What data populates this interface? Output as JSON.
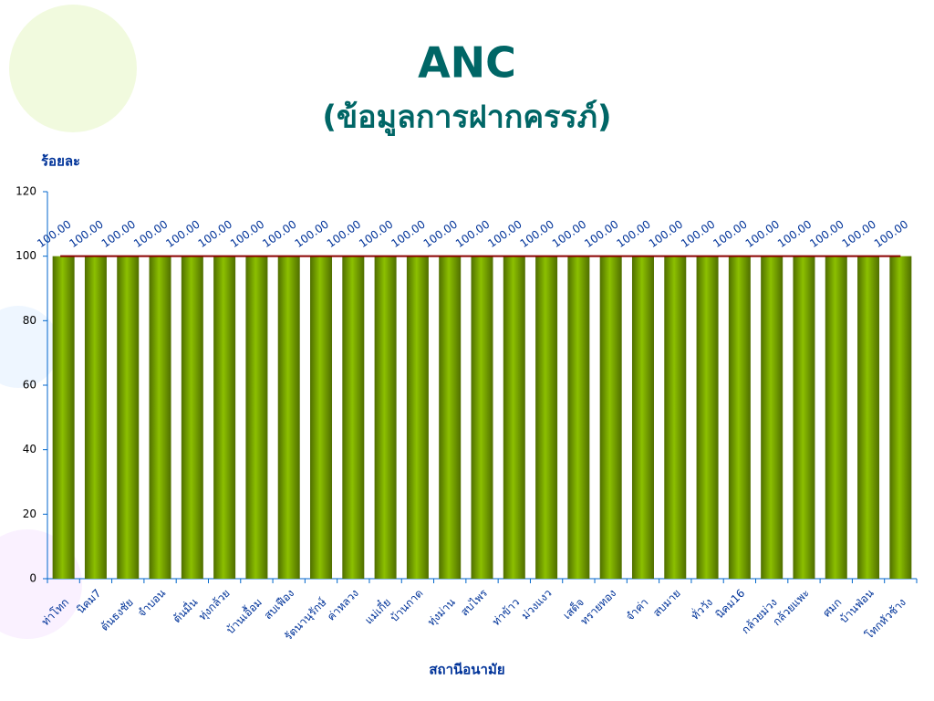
{
  "chart_data": {
    "type": "bar",
    "title": "ANC",
    "subtitle": "(ข้อมูลการฝากครรภ์)",
    "y_label": "ร้อยละ",
    "x_label": "สถานีอนามัย",
    "categories": [
      "ท่าโทก",
      "นิคม7",
      "ต้นธงชัย",
      "จำบอน",
      "ต้นมื่น",
      "ทุ่งกล้วย",
      "บ้านเอื้อม",
      "สบเฟือง",
      "รัตนานุรักษ์",
      "ค่าหลวง",
      "แม่เกี๋ย",
      "บ้านกาด",
      "ทุ่งม่าน",
      "สบไพร",
      "ท่าข้าว",
      "ม่วงแงว",
      "เสด็จ",
      "ทรายทอง",
      "จำค่า",
      "สบมาย",
      "ทั่ววัง",
      "นิคม16",
      "กล้วยม่วง",
      "กล้วยแพะ",
      "ศมก",
      "บ้านฟ่อน",
      "โทกหัวช้าง"
    ],
    "values": [
      100,
      100,
      100,
      100,
      100,
      100,
      100,
      100,
      100,
      100,
      100,
      100,
      100,
      100,
      100,
      100,
      100,
      100,
      100,
      100,
      100,
      100,
      100,
      100,
      100,
      100,
      100
    ],
    "value_labels": [
      "100.00",
      "100.00",
      "100.00",
      "100.00",
      "100.00",
      "100.00",
      "100.00",
      "100.00",
      "100.00",
      "100.00",
      "100.00",
      "100.00",
      "100.00",
      "100.00",
      "100.00",
      "100.00",
      "100.00",
      "100.00",
      "100.00",
      "100.00",
      "100.00",
      "100.00",
      "100.00",
      "100.00",
      "100.00",
      "100.00",
      "100.00"
    ],
    "color": "#8cc000",
    "reference_line": 100,
    "reference_color": "#8b0000",
    "ylim": [
      0,
      120
    ],
    "yticks": [
      0,
      20,
      40,
      60,
      80,
      100,
      120
    ],
    "grid": false
  }
}
